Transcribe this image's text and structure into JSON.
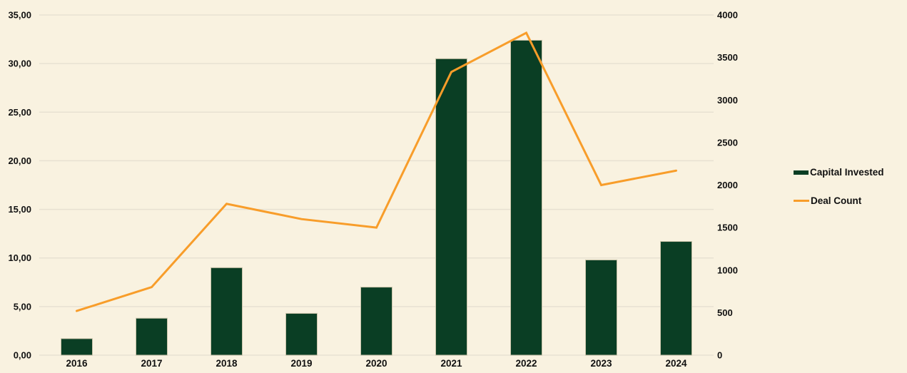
{
  "chart_data": {
    "type": "bar",
    "subtype": "combo-bar-line-dual-axis",
    "title": "",
    "categories": [
      "2016",
      "2017",
      "2018",
      "2019",
      "2020",
      "2021",
      "2022",
      "2023",
      "2024"
    ],
    "series": [
      {
        "name": "Capital Invested",
        "type": "bar",
        "axis": "left",
        "values": [
          1.7,
          3.8,
          9.0,
          4.3,
          7.0,
          30.5,
          32.4,
          9.8,
          11.7
        ]
      },
      {
        "name": "Deal Count",
        "type": "line",
        "axis": "right",
        "values": [
          520,
          800,
          1780,
          1600,
          1500,
          3330,
          3790,
          2000,
          2170
        ]
      }
    ],
    "left_axis": {
      "min": 0,
      "max": 35,
      "step": 5,
      "tick_labels": [
        "0,00",
        "5,00",
        "10,00",
        "15,00",
        "20,00",
        "25,00",
        "30,00",
        "35,00"
      ]
    },
    "right_axis": {
      "min": 0,
      "max": 4000,
      "step": 500,
      "tick_labels": [
        "0",
        "500",
        "1000",
        "1500",
        "2000",
        "2500",
        "3000",
        "3500",
        "4000"
      ]
    },
    "grid": "horizontal",
    "legend_position": "right"
  },
  "legend": {
    "items": [
      {
        "label": "Capital Invested",
        "swatch": "thick-bar-swatch"
      },
      {
        "label": "Deal Count",
        "swatch": "line-swatch"
      }
    ]
  },
  "colors": {
    "background": "#f9f2e0",
    "bar": "#0a3e24",
    "bar_border": "#c9c3a9",
    "line": "#f89d2a",
    "gridline": "#e8e1d2",
    "text": "#111111"
  }
}
